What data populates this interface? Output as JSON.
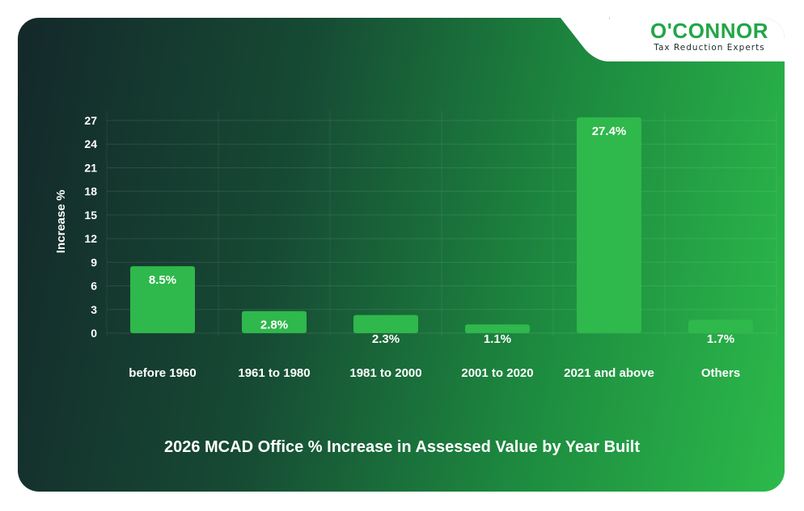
{
  "brand": {
    "name": "O'CONNOR",
    "tagline": "Tax Reduction Experts",
    "color": "#22a648"
  },
  "chart_data": {
    "type": "bar",
    "title": "2026 MCAD Office % Increase in Assessed Value by Year Built",
    "xlabel": "",
    "ylabel": "Increase %",
    "categories": [
      "before 1960",
      "1961 to 1980",
      "1981 to 2000",
      "2001 to 2020",
      "2021 and above",
      "Others"
    ],
    "values": [
      8.5,
      2.8,
      2.3,
      1.1,
      27.4,
      1.7
    ],
    "data_labels": [
      "8.5%",
      "2.8%",
      "2.3%",
      "1.1%",
      "27.4%",
      "1.7%"
    ],
    "y_ticks": [
      0,
      3,
      6,
      9,
      12,
      15,
      18,
      21,
      24,
      27
    ],
    "ylim": [
      0,
      27
    ],
    "grid": true,
    "bar_color": "#2fb84c"
  }
}
